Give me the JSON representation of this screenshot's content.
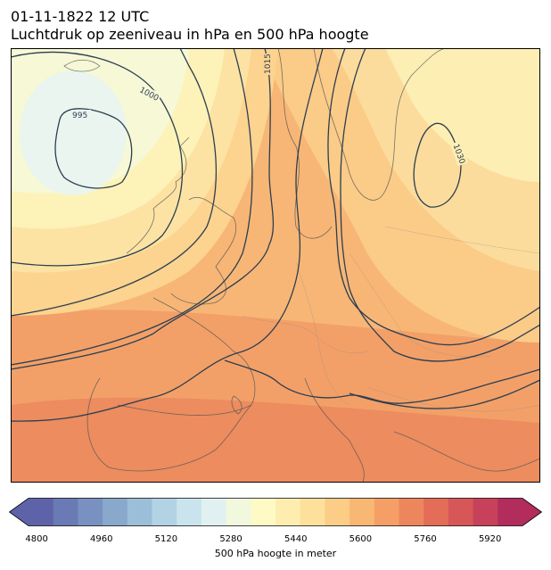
{
  "title": {
    "line1": "01-11-1822 12 UTC",
    "line2": "Luchtdruk op zeeniveau in hPa en 500 hPa hoogte"
  },
  "isobar_labels": [
    "995",
    "1000",
    "1015",
    "1030"
  ],
  "colorbar": {
    "label": "500 hPa hoogte in meter",
    "ticks": [
      "4800",
      "4960",
      "5120",
      "5280",
      "5440",
      "5600",
      "5760",
      "5920"
    ],
    "colors": [
      "#5e63a9",
      "#6a7ab4",
      "#7891c0",
      "#88a9cc",
      "#9bbfd8",
      "#b1d3e3",
      "#c9e4ec",
      "#e1f1f1",
      "#f2f8dd",
      "#fdfac6",
      "#fdeeaf",
      "#fde09b",
      "#fbcd86",
      "#f9b774",
      "#f59f66",
      "#ee865d",
      "#e46d58",
      "#d75657",
      "#c7415a",
      "#b22d5b"
    ]
  }
}
